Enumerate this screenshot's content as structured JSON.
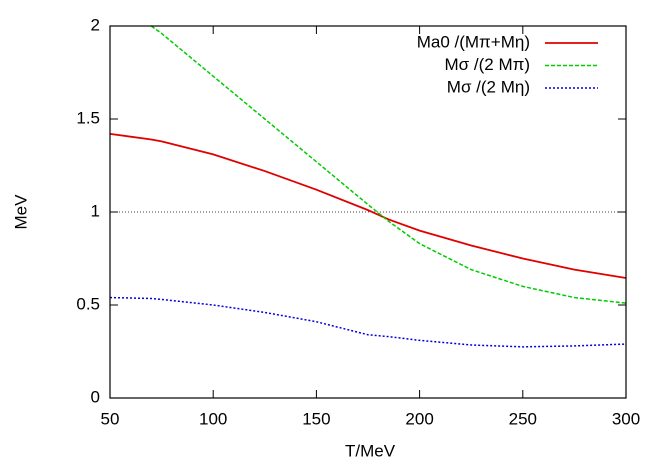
{
  "chart_data": {
    "type": "line",
    "x_label": "T/MeV",
    "y_label": "MeV",
    "x": [
      50,
      70,
      75,
      100,
      125,
      150,
      175,
      185,
      200,
      225,
      250,
      275,
      300
    ],
    "series": [
      {
        "name": "Ma0 /(Mπ+Mη)",
        "color": "#e00000",
        "dash": "solid",
        "values": [
          1.42,
          1.39,
          1.38,
          1.31,
          1.22,
          1.12,
          1.01,
          0.96,
          0.9,
          0.82,
          0.75,
          0.69,
          0.645
        ]
      },
      {
        "name": "Mσ /(2 Mπ)",
        "color": "#00cc00",
        "dash": "dashed",
        "values": [
          null,
          2,
          1.96,
          1.73,
          1.5,
          1.27,
          1.04,
          0.95,
          0.83,
          0.69,
          0.6,
          0.54,
          0.51
        ]
      },
      {
        "name": "Mσ /(2 Mη)",
        "color": "#0000dd",
        "dash": "dotted",
        "values": [
          0.54,
          0.535,
          0.53,
          0.5,
          0.46,
          0.41,
          0.34,
          0.33,
          0.31,
          0.285,
          0.275,
          0.28,
          0.29
        ]
      }
    ],
    "reference_line": 1,
    "xlim": [
      50,
      300
    ],
    "xticks": [
      50,
      100,
      150,
      200,
      250,
      300
    ],
    "ylim": [
      0,
      2
    ],
    "yticks": [
      0,
      0.5,
      1,
      1.5,
      2
    ],
    "legend": "top-right"
  }
}
